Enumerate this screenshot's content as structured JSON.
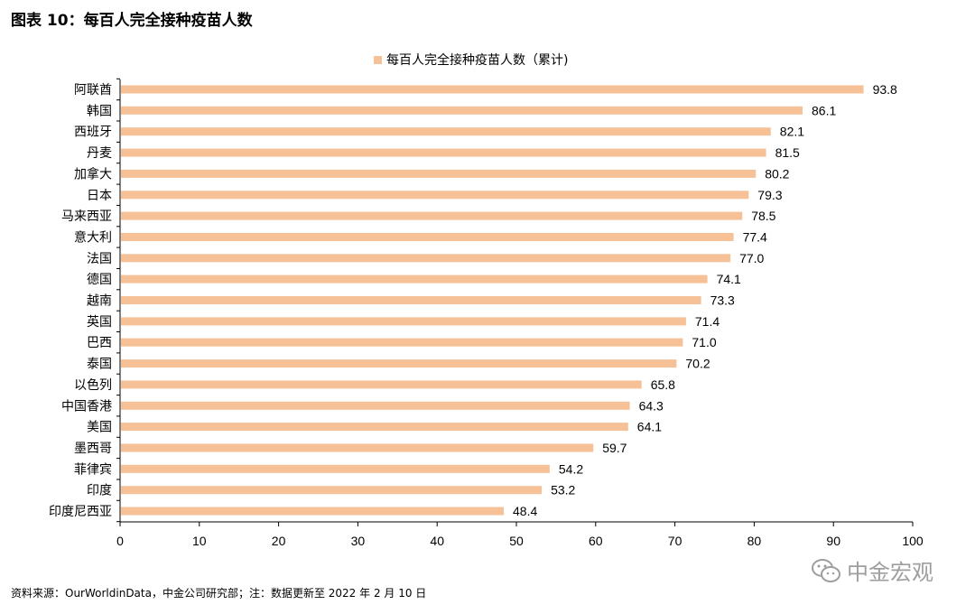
{
  "figure_title": "图表 10：每百人完全接种疫苗人数",
  "source_note": "资料来源：OurWorldinData，中金公司研究部；注：数据更新至 2022 年 2 月 10 日",
  "watermark": "中金宏观",
  "colors": {
    "bar": "#f6c197",
    "axis": "#000000",
    "text": "#000000"
  },
  "chart_data": {
    "type": "bar",
    "orientation": "horizontal",
    "title": "",
    "legend": [
      "每百人完全接种疫苗人数（累计)"
    ],
    "legend_position": "top-center",
    "categories": [
      "阿联酋",
      "韩国",
      "西班牙",
      "丹麦",
      "加拿大",
      "日本",
      "马来西亚",
      "意大利",
      "法国",
      "德国",
      "越南",
      "英国",
      "巴西",
      "泰国",
      "以色列",
      "中国香港",
      "美国",
      "墨西哥",
      "菲律宾",
      "印度",
      "印度尼西亚"
    ],
    "values": [
      93.8,
      86.1,
      82.1,
      81.5,
      80.2,
      79.3,
      78.5,
      77.4,
      77.0,
      74.1,
      73.3,
      71.4,
      71.0,
      70.2,
      65.8,
      64.3,
      64.1,
      59.7,
      54.2,
      53.2,
      48.4
    ],
    "value_labels": [
      "93.8",
      "86.1",
      "82.1",
      "81.5",
      "80.2",
      "79.3",
      "78.5",
      "77.4",
      "77.0",
      "74.1",
      "73.3",
      "71.4",
      "71.0",
      "70.2",
      "65.8",
      "64.3",
      "64.1",
      "59.7",
      "54.2",
      "53.2",
      "48.4"
    ],
    "xlim": [
      0,
      100
    ],
    "xticks": [
      "0",
      "10",
      "20",
      "30",
      "40",
      "50",
      "60",
      "70",
      "80",
      "90",
      "100"
    ],
    "grid": false,
    "xlabel": "",
    "ylabel": ""
  }
}
